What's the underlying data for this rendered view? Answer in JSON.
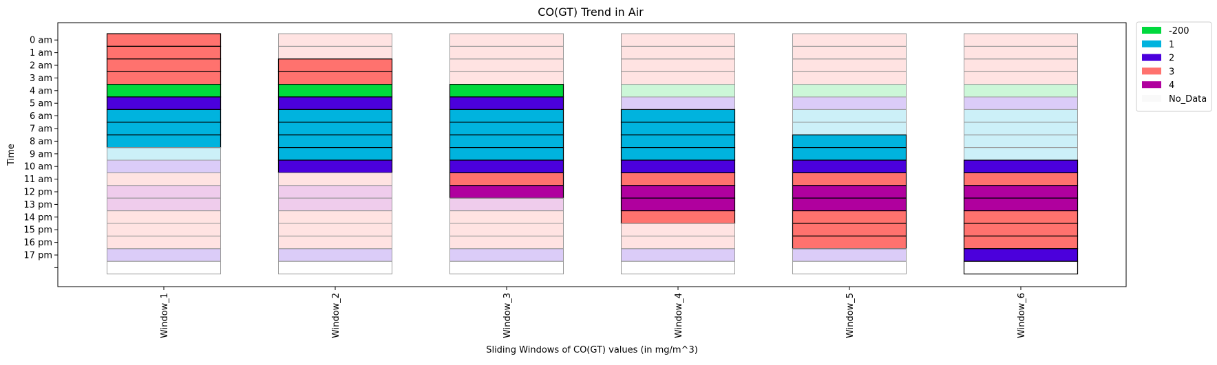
{
  "chart_data": {
    "type": "bar",
    "title": "CO(GT) Trend in Air",
    "xlabel": "Sliding Windows of CO(GT) values (in mg/m^3)",
    "ylabel": "Time",
    "categories": [
      "Window_1",
      "Window_2",
      "Window_3",
      "Window_4",
      "Window_5",
      "Window_6"
    ],
    "time_labels": [
      "0 am",
      "1 am",
      "2 am",
      "3 am",
      "4 am",
      "5 am",
      "6 am",
      "7 am",
      "8 am",
      "9 am",
      "10 am",
      "11 am",
      "12 pm",
      "13 pm",
      "14 pm",
      "15 pm",
      "16 pm",
      "17 pm",
      ""
    ],
    "legend": {
      "placement": "outside-top-right",
      "entries": [
        {
          "label": "-200",
          "color": "#00d93d"
        },
        {
          "label": "1",
          "color": "#00b3de"
        },
        {
          "label": "2",
          "color": "#4b00dc"
        },
        {
          "label": "3",
          "color": "#ff726e"
        },
        {
          "label": "4",
          "color": "#b0009e"
        },
        {
          "label": "No_Data",
          "color": "#f9f9f9"
        }
      ]
    },
    "colors": {
      "-200": "#00d93d",
      "1": "#00b3de",
      "2": "#4b00dc",
      "3": "#ff726e",
      "4": "#b0009e",
      "No_Data": "#ffffff"
    },
    "series": [
      {
        "window": "Window_1",
        "active_range": [
          0,
          8
        ],
        "cells": [
          "3",
          "3",
          "3",
          "3",
          "-200",
          "2",
          "1",
          "1",
          "1",
          "1",
          "2",
          "3",
          "4",
          "4",
          "3",
          "3",
          "3",
          "2",
          "No_Data"
        ]
      },
      {
        "window": "Window_2",
        "active_range": [
          2,
          10
        ],
        "cells": [
          "3",
          "3",
          "3",
          "3",
          "-200",
          "2",
          "1",
          "1",
          "1",
          "1",
          "2",
          "3",
          "4",
          "4",
          "3",
          "3",
          "3",
          "2",
          "No_Data"
        ]
      },
      {
        "window": "Window_3",
        "active_range": [
          4,
          12
        ],
        "cells": [
          "3",
          "3",
          "3",
          "3",
          "-200",
          "2",
          "1",
          "1",
          "1",
          "1",
          "2",
          "3",
          "4",
          "4",
          "3",
          "3",
          "3",
          "2",
          "No_Data"
        ]
      },
      {
        "window": "Window_4",
        "active_range": [
          6,
          14
        ],
        "cells": [
          "3",
          "3",
          "3",
          "3",
          "-200",
          "2",
          "1",
          "1",
          "1",
          "1",
          "2",
          "3",
          "4",
          "4",
          "3",
          "3",
          "3",
          "2",
          "No_Data"
        ]
      },
      {
        "window": "Window_5",
        "active_range": [
          8,
          16
        ],
        "cells": [
          "3",
          "3",
          "3",
          "3",
          "-200",
          "2",
          "1",
          "1",
          "1",
          "1",
          "2",
          "3",
          "4",
          "4",
          "3",
          "3",
          "3",
          "2",
          "No_Data"
        ]
      },
      {
        "window": "Window_6",
        "active_range": [
          10,
          18
        ],
        "cells": [
          "3",
          "3",
          "3",
          "3",
          "-200",
          "2",
          "1",
          "1",
          "1",
          "1",
          "2",
          "3",
          "4",
          "4",
          "3",
          "3",
          "3",
          "2",
          "No_Data"
        ]
      }
    ]
  }
}
